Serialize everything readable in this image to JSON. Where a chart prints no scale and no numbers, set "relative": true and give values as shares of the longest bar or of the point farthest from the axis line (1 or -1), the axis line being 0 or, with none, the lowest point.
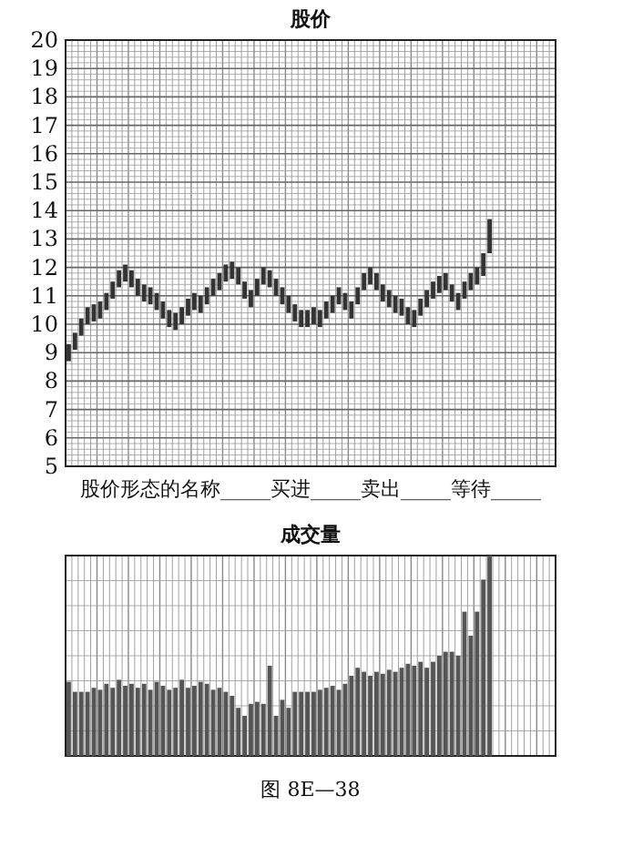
{
  "chart_data": [
    {
      "type": "bar",
      "title": "股价",
      "categories": [
        null,
        null,
        null,
        null,
        null,
        null,
        null,
        null,
        null,
        null,
        null,
        null,
        null,
        null,
        null,
        null,
        null,
        null,
        null,
        null,
        null,
        null,
        null,
        null,
        null,
        null,
        null,
        null,
        null,
        null,
        null,
        null,
        null,
        null,
        null,
        null,
        null,
        null,
        null,
        null,
        null,
        null,
        null,
        null,
        null,
        null,
        null,
        null,
        null,
        null,
        null,
        null,
        null,
        null,
        null,
        null,
        null,
        null,
        null,
        null,
        null,
        null,
        null,
        null,
        null,
        null,
        null,
        null,
        null,
        null,
        null,
        null,
        null,
        null,
        null,
        null,
        null,
        null
      ],
      "base": [
        8.7,
        9.1,
        9.6,
        10.0,
        10.1,
        10.2,
        10.5,
        10.9,
        11.3,
        11.5,
        11.3,
        11.0,
        10.8,
        10.7,
        10.5,
        10.2,
        9.9,
        9.8,
        10.0,
        10.3,
        10.5,
        10.4,
        10.7,
        11.0,
        11.2,
        11.5,
        11.6,
        11.4,
        10.9,
        10.6,
        11.0,
        11.4,
        11.3,
        11.0,
        10.7,
        10.4,
        10.1,
        9.9,
        9.9,
        10.0,
        9.9,
        10.2,
        10.4,
        10.7,
        10.5,
        10.2,
        10.7,
        11.2,
        11.4,
        11.2,
        10.8,
        10.6,
        10.4,
        10.3,
        10.0,
        9.9,
        10.3,
        10.6,
        10.9,
        11.1,
        11.2,
        10.8,
        10.5,
        10.9,
        11.2,
        11.4,
        11.7,
        12.5,
        null,
        null,
        null,
        null,
        null,
        null,
        null,
        null,
        null,
        null
      ],
      "values": [
        0.6,
        0.6,
        0.6,
        0.6,
        0.6,
        0.6,
        0.6,
        0.6,
        0.6,
        0.6,
        0.6,
        0.6,
        0.6,
        0.6,
        0.6,
        0.6,
        0.6,
        0.6,
        0.6,
        0.6,
        0.6,
        0.6,
        0.6,
        0.6,
        0.6,
        0.6,
        0.6,
        0.6,
        0.6,
        0.6,
        0.6,
        0.6,
        0.6,
        0.6,
        0.6,
        0.6,
        0.6,
        0.6,
        0.6,
        0.6,
        0.6,
        0.6,
        0.6,
        0.6,
        0.6,
        0.6,
        0.6,
        0.6,
        0.6,
        0.6,
        0.6,
        0.6,
        0.6,
        0.6,
        0.6,
        0.6,
        0.6,
        0.6,
        0.6,
        0.6,
        0.6,
        0.6,
        0.6,
        0.6,
        0.6,
        0.6,
        0.8,
        1.2,
        null,
        null,
        null,
        null,
        null,
        null,
        null,
        null,
        null,
        null
      ],
      "color": "#333333",
      "ylim": [
        5,
        20
      ],
      "yticks": [
        5,
        6,
        7,
        8,
        9,
        10,
        11,
        12,
        13,
        14,
        15,
        16,
        17,
        18,
        19,
        20
      ],
      "grid": true,
      "tick_labels": "y",
      "annotations": [
        "股价形态的名称_____买进_____卖出_____等待_____"
      ]
    },
    {
      "type": "bar",
      "title": "成交量",
      "relative": true,
      "categories": [
        null,
        null,
        null,
        null,
        null,
        null,
        null,
        null,
        null,
        null,
        null,
        null,
        null,
        null,
        null,
        null,
        null,
        null,
        null,
        null,
        null,
        null,
        null,
        null,
        null,
        null,
        null,
        null,
        null,
        null,
        null,
        null,
        null,
        null,
        null,
        null,
        null,
        null,
        null,
        null,
        null,
        null,
        null,
        null,
        null,
        null,
        null,
        null,
        null,
        null,
        null,
        null,
        null,
        null,
        null,
        null,
        null,
        null,
        null,
        null,
        null,
        null,
        null,
        null,
        null,
        null,
        null,
        null,
        null,
        null,
        null,
        null,
        null,
        null,
        null,
        null,
        null,
        null
      ],
      "values": [
        0.37,
        0.32,
        0.32,
        0.32,
        0.34,
        0.33,
        0.36,
        0.34,
        0.38,
        0.35,
        0.36,
        0.34,
        0.36,
        0.33,
        0.37,
        0.35,
        0.33,
        0.34,
        0.38,
        0.34,
        0.35,
        0.37,
        0.36,
        0.33,
        0.34,
        0.32,
        0.3,
        0.24,
        0.2,
        0.26,
        0.27,
        0.26,
        0.45,
        0.2,
        0.28,
        0.24,
        0.32,
        0.32,
        0.32,
        0.32,
        0.33,
        0.34,
        0.35,
        0.33,
        0.36,
        0.4,
        0.44,
        0.42,
        0.4,
        0.42,
        0.41,
        0.43,
        0.42,
        0.44,
        0.46,
        0.45,
        0.47,
        0.44,
        0.47,
        0.5,
        0.52,
        0.52,
        0.5,
        0.72,
        0.6,
        0.72,
        0.88,
        1.0,
        null,
        null,
        null,
        null,
        null,
        null,
        null,
        null,
        null,
        null
      ],
      "color": "#555555",
      "grid": "x",
      "tick_labels": false,
      "annotations": [
        "图 8E—38"
      ]
    }
  ]
}
